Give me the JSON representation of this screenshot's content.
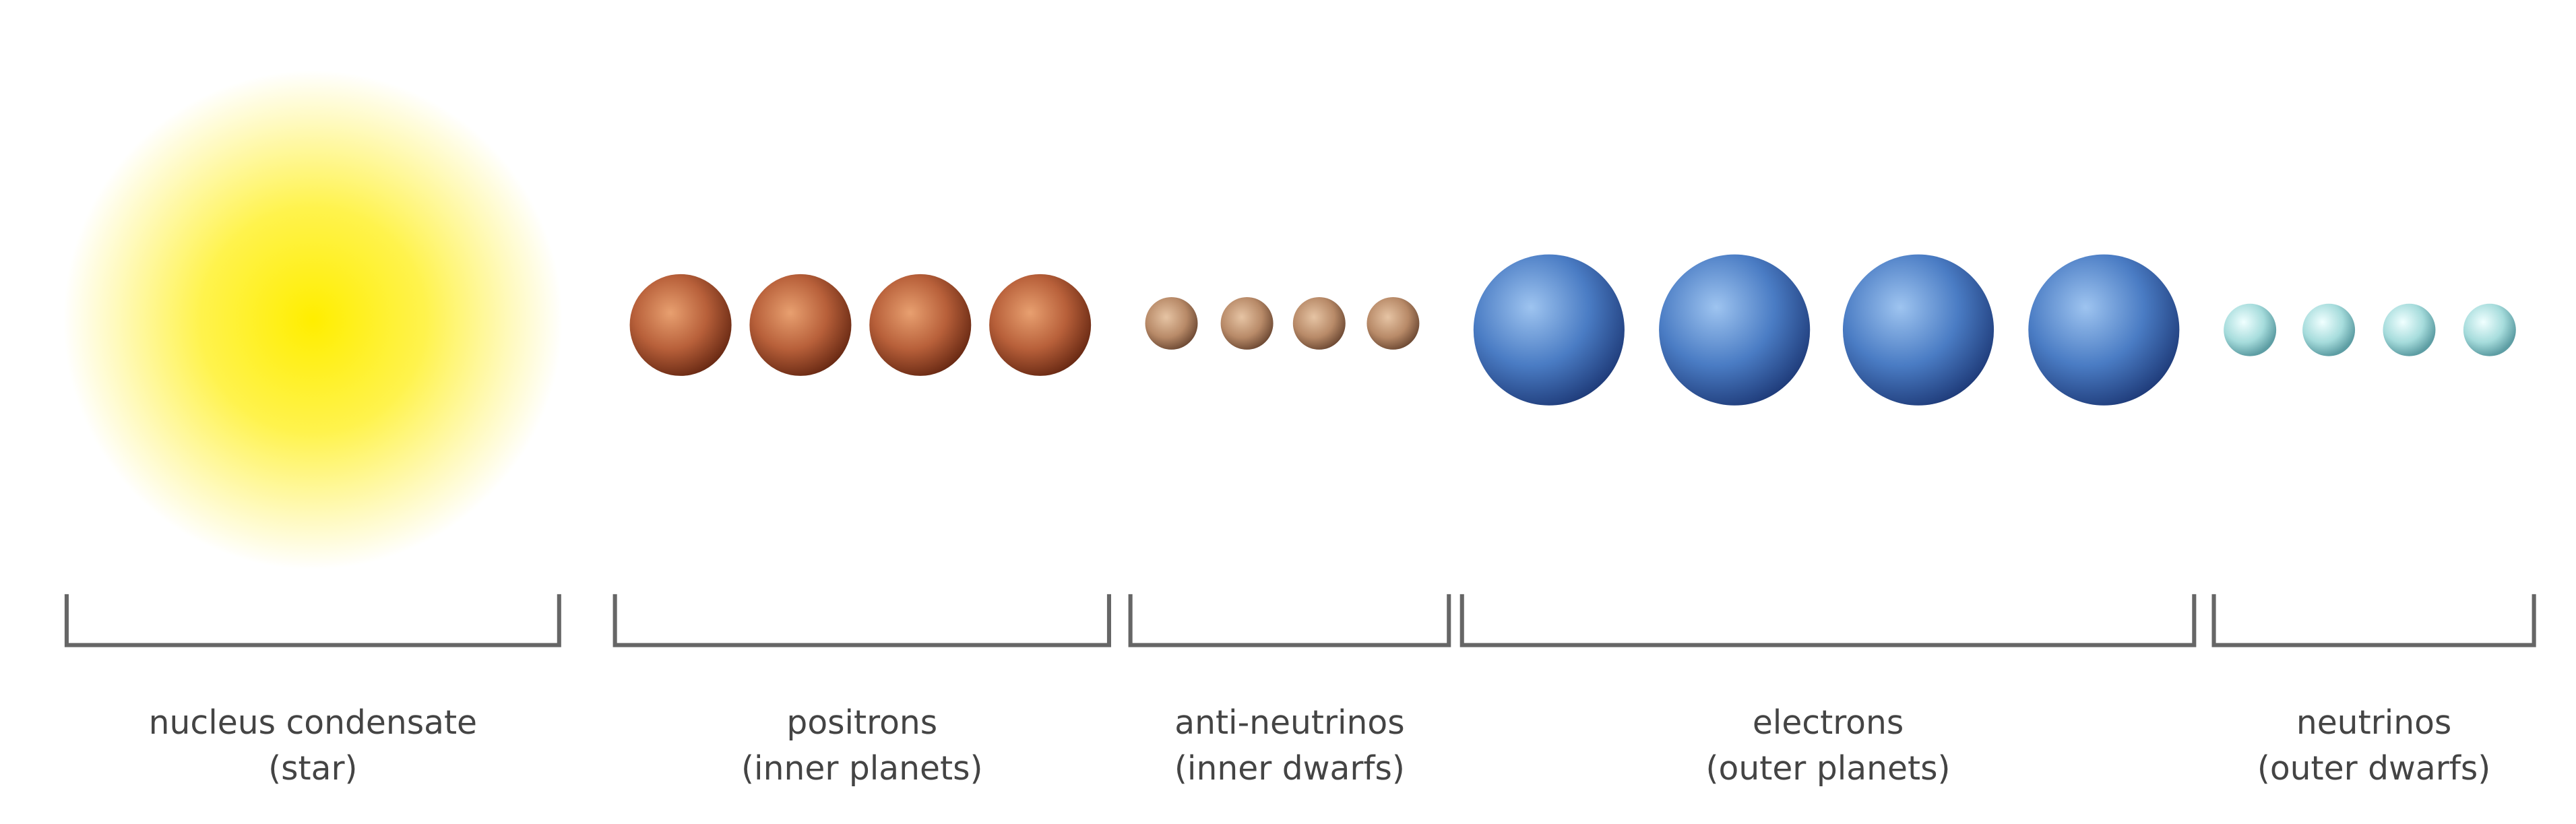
{
  "groups": [
    {
      "label": "nucleus condensate",
      "sublabel": "(star)"
    },
    {
      "label": "positrons",
      "sublabel": "(inner planets)"
    },
    {
      "label": "anti-neutrinos",
      "sublabel": "(inner dwarfs)"
    },
    {
      "label": "electrons",
      "sublabel": "(outer planets)"
    },
    {
      "label": "neutrinos",
      "sublabel": "(outer dwarfs)"
    }
  ]
}
